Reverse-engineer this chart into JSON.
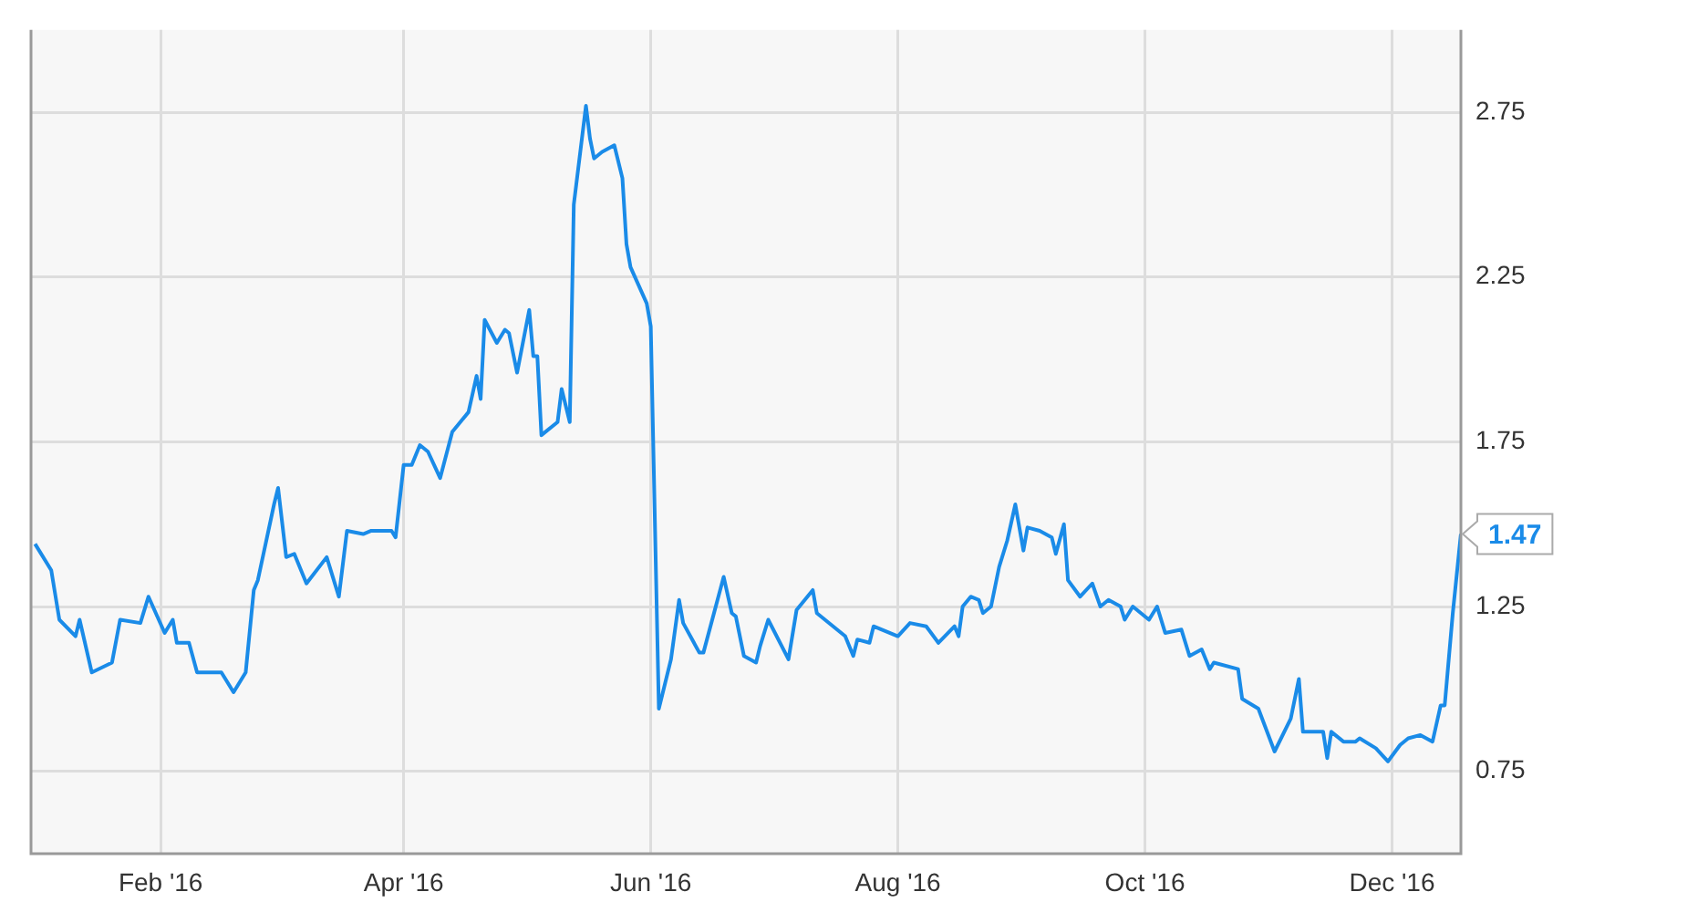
{
  "chart_data": {
    "type": "line",
    "x": [
      "2016-01-01",
      "2016-01-05",
      "2016-01-07",
      "2016-01-11",
      "2016-01-12",
      "2016-01-15",
      "2016-01-20",
      "2016-01-22",
      "2016-01-27",
      "2016-01-29",
      "2016-02-02",
      "2016-02-04",
      "2016-02-05",
      "2016-02-08",
      "2016-02-10",
      "2016-02-16",
      "2016-02-19",
      "2016-02-22",
      "2016-02-24",
      "2016-02-25",
      "2016-02-29",
      "2016-03-01",
      "2016-03-03",
      "2016-03-05",
      "2016-03-08",
      "2016-03-13",
      "2016-03-16",
      "2016-03-18",
      "2016-03-22",
      "2016-03-24",
      "2016-03-29",
      "2016-03-30",
      "2016-04-01",
      "2016-04-03",
      "2016-04-05",
      "2016-04-07",
      "2016-04-10",
      "2016-04-13",
      "2016-04-17",
      "2016-04-19",
      "2016-04-20",
      "2016-04-21",
      "2016-04-24",
      "2016-04-26",
      "2016-04-27",
      "2016-04-29",
      "2016-05-02",
      "2016-05-03",
      "2016-05-04",
      "2016-05-05",
      "2016-05-09",
      "2016-05-10",
      "2016-05-12",
      "2016-05-13",
      "2016-05-16",
      "2016-05-17",
      "2016-05-18",
      "2016-05-20",
      "2016-05-23",
      "2016-05-25",
      "2016-05-26",
      "2016-05-27",
      "2016-05-31",
      "2016-06-01",
      "2016-06-03",
      "2016-06-06",
      "2016-06-08",
      "2016-06-09",
      "2016-06-13",
      "2016-06-14",
      "2016-06-19",
      "2016-06-21",
      "2016-06-22",
      "2016-06-24",
      "2016-06-27",
      "2016-06-28",
      "2016-06-30",
      "2016-07-05",
      "2016-07-07",
      "2016-07-11",
      "2016-07-12",
      "2016-07-19",
      "2016-07-21",
      "2016-07-22",
      "2016-07-25",
      "2016-07-26",
      "2016-08-01",
      "2016-08-04",
      "2016-08-08",
      "2016-08-11",
      "2016-08-15",
      "2016-08-16",
      "2016-08-17",
      "2016-08-19",
      "2016-08-21",
      "2016-08-22",
      "2016-08-24",
      "2016-08-26",
      "2016-08-28",
      "2016-08-30",
      "2016-09-01",
      "2016-09-02",
      "2016-09-05",
      "2016-09-08",
      "2016-09-09",
      "2016-09-11",
      "2016-09-12",
      "2016-09-15",
      "2016-09-18",
      "2016-09-20",
      "2016-09-22",
      "2016-09-25",
      "2016-09-26",
      "2016-09-28",
      "2016-10-02",
      "2016-10-04",
      "2016-10-06",
      "2016-10-10",
      "2016-10-12",
      "2016-10-15",
      "2016-10-17",
      "2016-10-18",
      "2016-10-24",
      "2016-10-25",
      "2016-10-29",
      "2016-11-02",
      "2016-11-06",
      "2016-11-08",
      "2016-11-09",
      "2016-11-14",
      "2016-11-15",
      "2016-11-16",
      "2016-11-19",
      "2016-11-22",
      "2016-11-23",
      "2016-11-27",
      "2016-11-30",
      "2016-12-03",
      "2016-12-05",
      "2016-12-08",
      "2016-12-11",
      "2016-12-13",
      "2016-12-14",
      "2016-12-16",
      "2016-12-18"
    ],
    "series": [
      {
        "color": "#1a8be8",
        "values": [
          1.44,
          1.36,
          1.21,
          1.16,
          1.21,
          1.05,
          1.08,
          1.21,
          1.2,
          1.28,
          1.17,
          1.21,
          1.14,
          1.14,
          1.05,
          1.05,
          0.99,
          1.05,
          1.3,
          1.33,
          1.56,
          1.61,
          1.4,
          1.41,
          1.32,
          1.4,
          1.28,
          1.48,
          1.47,
          1.48,
          1.48,
          1.46,
          1.68,
          1.68,
          1.74,
          1.72,
          1.64,
          1.78,
          1.84,
          1.95,
          1.88,
          2.12,
          2.05,
          2.09,
          2.08,
          1.96,
          2.15,
          2.01,
          2.01,
          1.77,
          1.81,
          1.91,
          1.81,
          2.47,
          2.77,
          2.67,
          2.61,
          2.63,
          2.65,
          2.55,
          2.35,
          2.28,
          2.17,
          2.1,
          0.94,
          1.09,
          1.27,
          1.2,
          1.11,
          1.11,
          1.34,
          1.23,
          1.22,
          1.1,
          1.08,
          1.13,
          1.21,
          1.09,
          1.24,
          1.3,
          1.23,
          1.16,
          1.1,
          1.15,
          1.14,
          1.19,
          1.16,
          1.2,
          1.19,
          1.14,
          1.19,
          1.16,
          1.25,
          1.28,
          1.27,
          1.23,
          1.25,
          1.37,
          1.45,
          1.56,
          1.42,
          1.49,
          1.48,
          1.46,
          1.41,
          1.5,
          1.33,
          1.28,
          1.32,
          1.25,
          1.27,
          1.25,
          1.21,
          1.25,
          1.21,
          1.25,
          1.17,
          1.18,
          1.1,
          1.12,
          1.06,
          1.08,
          1.06,
          0.97,
          0.94,
          0.81,
          0.91,
          1.03,
          0.87,
          0.87,
          0.79,
          0.87,
          0.84,
          0.84,
          0.85,
          0.82,
          0.78,
          0.83,
          0.85,
          0.86,
          0.84,
          0.95,
          0.95,
          1.23,
          1.47
        ]
      }
    ],
    "xlim": [
      "2015-12-31",
      "2016-12-18"
    ],
    "xticks": [
      {
        "value": "2016-02-01",
        "label": "Feb '16"
      },
      {
        "value": "2016-04-01",
        "label": "Apr '16"
      },
      {
        "value": "2016-06-01",
        "label": "Jun '16"
      },
      {
        "value": "2016-08-01",
        "label": "Aug '16"
      },
      {
        "value": "2016-10-01",
        "label": "Oct '16"
      },
      {
        "value": "2016-12-01",
        "label": "Dec '16"
      }
    ],
    "ylim": [
      0.5,
      3.0
    ],
    "yticks": [
      0.75,
      1.25,
      1.75,
      2.25,
      2.75
    ],
    "grid": true,
    "marker": "none",
    "line_style": "solid",
    "annotations": [
      {
        "text": "1.47",
        "x": "2016-12-18",
        "y": 1.47
      }
    ]
  }
}
